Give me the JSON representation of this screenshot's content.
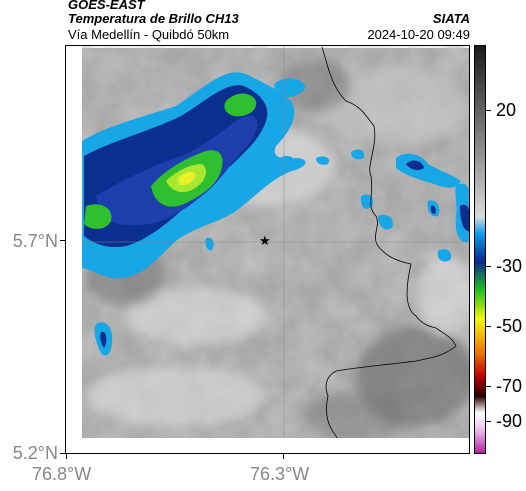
{
  "header": {
    "satellite": "GOES-EAST",
    "product": "Temperatura de Brillo CH13",
    "region": "Vía Medellín - Quibdó 50km",
    "org": "SIATA",
    "datetime": "2024-10-20 09:49"
  },
  "axes": {
    "lat_labels": [
      "5.7°N",
      "5.2°N"
    ],
    "lon_labels": [
      "76.8°W",
      "76.3°W"
    ]
  },
  "colorbar": {
    "labels": [
      "20",
      "-30",
      "-50",
      "-70",
      "-90"
    ],
    "colors": [
      "#2a2a2a",
      "#888888",
      "#cfcfcf",
      "#1b9fe0",
      "#0a3a9a",
      "#1fbf1f",
      "#f5f50a",
      "#f07a00",
      "#c00000",
      "#3a0000",
      "#f0e0f0",
      "#c02bb0"
    ]
  },
  "map": {
    "marker_icon": "star-icon",
    "colors": {
      "cloud_light": "#d8d8d8",
      "cloud_mid": "#9a9a9a",
      "cloud_dark": "#6a6a6a",
      "cold_cyan": "#17a6e6",
      "cold_blue": "#0b2f8f",
      "cold_green": "#2fc02f",
      "cold_yellow": "#e8f02a"
    }
  }
}
